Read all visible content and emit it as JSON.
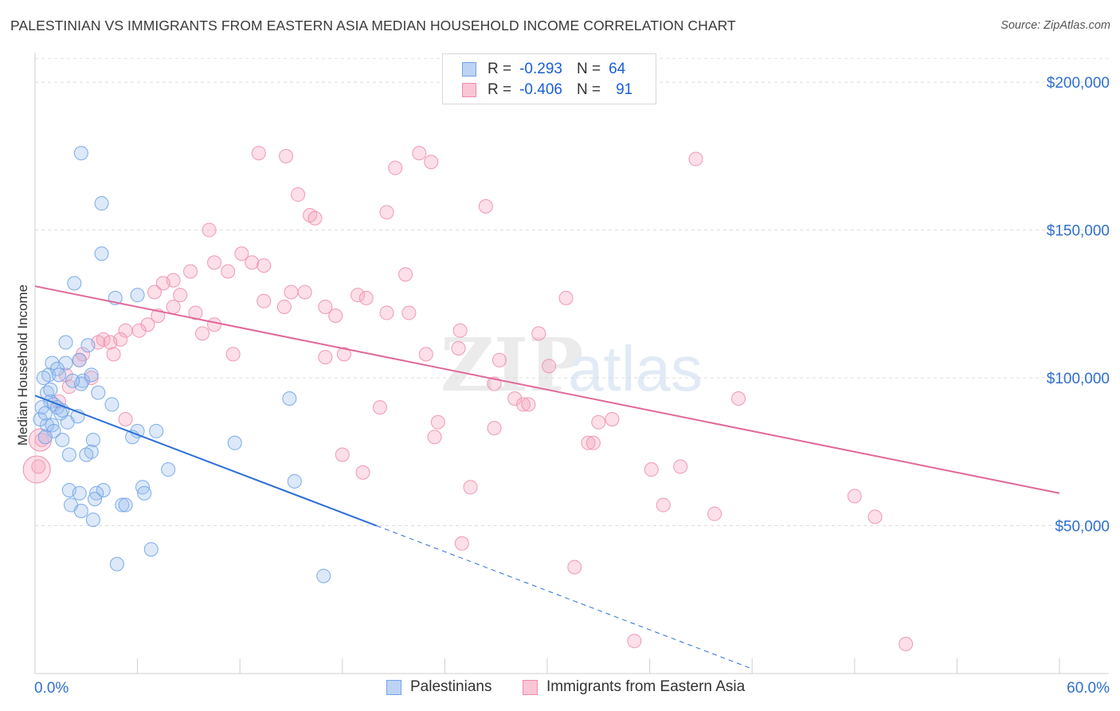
{
  "title": "PALESTINIAN VS IMMIGRANTS FROM EASTERN ASIA MEDIAN HOUSEHOLD INCOME CORRELATION CHART",
  "source": "Source: ZipAtlas.com",
  "legend_top": {
    "rows": [
      {
        "r_label": "R =",
        "r_value": "-0.293",
        "n_label": "N =",
        "n_value": "64"
      },
      {
        "r_label": "R =",
        "r_value": "-0.406",
        "n_label": "N =",
        "n_value": "91"
      }
    ]
  },
  "chart_data": {
    "type": "scatter",
    "title": "PALESTINIAN VS IMMIGRANTS FROM EASTERN ASIA MEDIAN HOUSEHOLD INCOME CORRELATION CHART",
    "xlabel": "",
    "ylabel": "Median Household Income",
    "xlim": [
      0,
      60
    ],
    "ylim": [
      0,
      210000
    ],
    "x_tick_labels": [
      "0.0%",
      "60.0%"
    ],
    "y_ticks": [
      50000,
      100000,
      150000,
      200000
    ],
    "y_tick_labels": [
      "$50,000",
      "$100,000",
      "$150,000",
      "$200,000"
    ],
    "grid": "horizontal dashed",
    "colors": {
      "palestinians": "#6fa3e8",
      "eastern_asia": "#f08aa8",
      "blue_line": "#2b6fd6",
      "pink_line": "#e0689a",
      "tick_text": "#2f6fd0"
    },
    "series": [
      {
        "name": "Palestinians",
        "trend": {
          "x0": 0,
          "y0": 94000,
          "x1": 20,
          "y1": 50000,
          "dashed_to_x": 42
        },
        "points": [
          [
            2.7,
            176000
          ],
          [
            3.9,
            159000
          ],
          [
            3.9,
            142000
          ],
          [
            2.3,
            132000
          ],
          [
            4.7,
            127000
          ],
          [
            6.0,
            128000
          ],
          [
            1.8,
            112000
          ],
          [
            3.1,
            111000
          ],
          [
            1.0,
            105000
          ],
          [
            1.8,
            105000
          ],
          [
            2.6,
            106000
          ],
          [
            0.8,
            101000
          ],
          [
            1.3,
            103000
          ],
          [
            1.4,
            101000
          ],
          [
            2.8,
            99000
          ],
          [
            3.3,
            101000
          ],
          [
            2.7,
            98000
          ],
          [
            0.5,
            100000
          ],
          [
            3.7,
            95000
          ],
          [
            0.7,
            95000
          ],
          [
            0.9,
            92000
          ],
          [
            1.1,
            91000
          ],
          [
            4.5,
            91000
          ],
          [
            1.3,
            90000
          ],
          [
            0.4,
            90000
          ],
          [
            1.6,
            89000
          ],
          [
            2.5,
            87000
          ],
          [
            1.9,
            85000
          ],
          [
            1.0,
            84000
          ],
          [
            0.7,
            84000
          ],
          [
            1.1,
            82000
          ],
          [
            6.0,
            82000
          ],
          [
            7.1,
            82000
          ],
          [
            5.7,
            80000
          ],
          [
            0.6,
            80000
          ],
          [
            1.6,
            79000
          ],
          [
            3.4,
            79000
          ],
          [
            11.7,
            78000
          ],
          [
            14.9,
            93000
          ],
          [
            3.3,
            75000
          ],
          [
            2.0,
            74000
          ],
          [
            3.0,
            74000
          ],
          [
            7.8,
            69000
          ],
          [
            15.2,
            65000
          ],
          [
            6.3,
            63000
          ],
          [
            2.0,
            62000
          ],
          [
            4.0,
            62000
          ],
          [
            3.6,
            61000
          ],
          [
            2.6,
            61000
          ],
          [
            6.4,
            61000
          ],
          [
            3.5,
            59000
          ],
          [
            5.1,
            57000
          ],
          [
            2.1,
            57000
          ],
          [
            2.7,
            55000
          ],
          [
            3.4,
            52000
          ],
          [
            6.8,
            42000
          ],
          [
            4.8,
            37000
          ],
          [
            16.9,
            33000
          ],
          [
            0.3,
            86000
          ],
          [
            0.6,
            88000
          ],
          [
            1.5,
            88000
          ],
          [
            5.3,
            57000
          ],
          [
            2.2,
            99000
          ],
          [
            0.9,
            96000
          ]
        ]
      },
      {
        "name": "Immigrants from Eastern Asia",
        "trend": {
          "x0": 0,
          "y0": 131000,
          "x1": 60,
          "y1": 61000
        },
        "points": [
          [
            13.1,
            176000
          ],
          [
            14.7,
            175000
          ],
          [
            22.5,
            176000
          ],
          [
            23.2,
            173000
          ],
          [
            21.1,
            171000
          ],
          [
            38.7,
            174000
          ],
          [
            15.4,
            162000
          ],
          [
            26.4,
            158000
          ],
          [
            20.6,
            156000
          ],
          [
            16.1,
            155000
          ],
          [
            16.4,
            154000
          ],
          [
            10.2,
            150000
          ],
          [
            12.1,
            142000
          ],
          [
            10.5,
            139000
          ],
          [
            12.7,
            139000
          ],
          [
            13.4,
            138000
          ],
          [
            11.3,
            136000
          ],
          [
            9.1,
            136000
          ],
          [
            21.7,
            135000
          ],
          [
            8.1,
            133000
          ],
          [
            7.5,
            132000
          ],
          [
            15.0,
            129000
          ],
          [
            15.8,
            129000
          ],
          [
            8.5,
            128000
          ],
          [
            7.0,
            129000
          ],
          [
            18.9,
            128000
          ],
          [
            19.4,
            127000
          ],
          [
            31.1,
            127000
          ],
          [
            13.4,
            126000
          ],
          [
            8.1,
            124000
          ],
          [
            14.6,
            124000
          ],
          [
            17.0,
            124000
          ],
          [
            9.4,
            122000
          ],
          [
            20.6,
            122000
          ],
          [
            21.9,
            122000
          ],
          [
            7.2,
            121000
          ],
          [
            17.6,
            121000
          ],
          [
            6.6,
            118000
          ],
          [
            10.5,
            118000
          ],
          [
            5.3,
            116000
          ],
          [
            6.1,
            116000
          ],
          [
            24.9,
            116000
          ],
          [
            9.8,
            115000
          ],
          [
            29.5,
            115000
          ],
          [
            4.0,
            113000
          ],
          [
            5.0,
            113000
          ],
          [
            4.4,
            112000
          ],
          [
            3.7,
            112000
          ],
          [
            24.8,
            110000
          ],
          [
            2.8,
            108000
          ],
          [
            4.6,
            108000
          ],
          [
            11.6,
            108000
          ],
          [
            18.1,
            108000
          ],
          [
            22.9,
            108000
          ],
          [
            17.0,
            107000
          ],
          [
            27.2,
            106000
          ],
          [
            2.6,
            106000
          ],
          [
            30.1,
            104000
          ],
          [
            1.8,
            101000
          ],
          [
            3.3,
            100000
          ],
          [
            26.9,
            98000
          ],
          [
            2.0,
            97000
          ],
          [
            28.1,
            93000
          ],
          [
            41.2,
            93000
          ],
          [
            1.4,
            92000
          ],
          [
            28.6,
            91000
          ],
          [
            20.2,
            90000
          ],
          [
            28.9,
            91000
          ],
          [
            5.3,
            86000
          ],
          [
            23.6,
            85000
          ],
          [
            33.0,
            85000
          ],
          [
            33.8,
            86000
          ],
          [
            26.9,
            83000
          ],
          [
            23.4,
            80000
          ],
          [
            32.4,
            78000
          ],
          [
            32.7,
            78000
          ],
          [
            18.0,
            74000
          ],
          [
            19.2,
            68000
          ],
          [
            36.1,
            69000
          ],
          [
            37.8,
            70000
          ],
          [
            0.4,
            79000
          ],
          [
            0.2,
            70000
          ],
          [
            25.5,
            63000
          ],
          [
            36.8,
            57000
          ],
          [
            39.8,
            54000
          ],
          [
            48.0,
            60000
          ],
          [
            49.2,
            53000
          ],
          [
            25.0,
            44000
          ],
          [
            31.6,
            36000
          ],
          [
            35.1,
            11000
          ],
          [
            51.0,
            10000
          ]
        ]
      }
    ]
  },
  "bottom_legend": {
    "items": [
      {
        "label": "Palestinians"
      },
      {
        "label": "Immigrants from Eastern Asia"
      }
    ]
  },
  "watermark": "ZIPatlas"
}
